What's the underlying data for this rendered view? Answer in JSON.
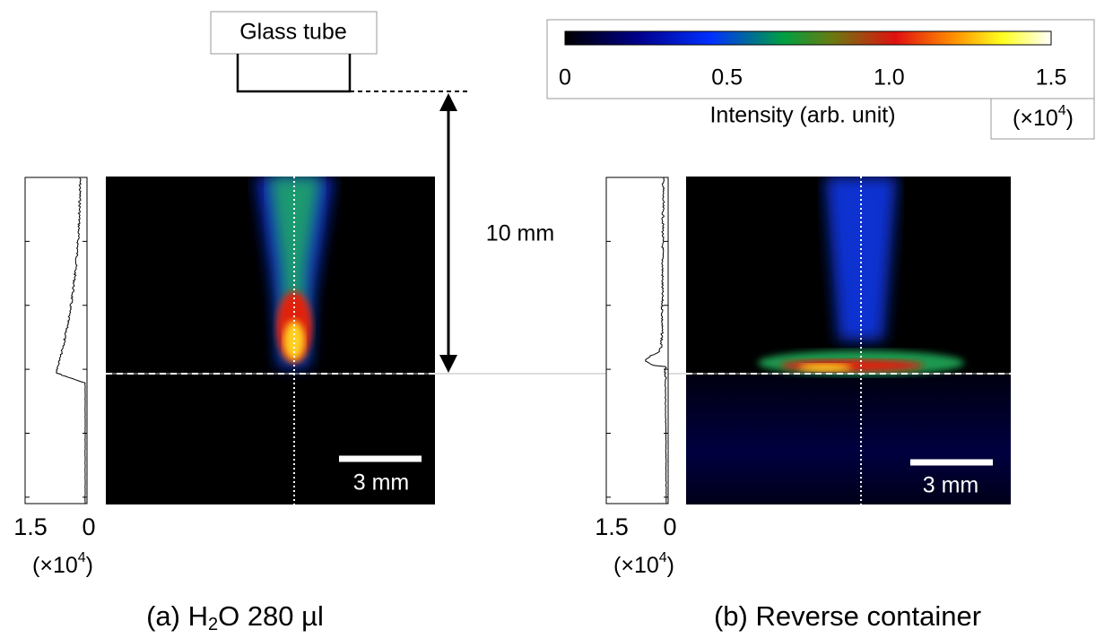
{
  "apparatus": {
    "label": "Glass tube",
    "distance": "10 mm"
  },
  "colorbar": {
    "ticks": [
      "0",
      "0.5",
      "1.0",
      "1.5"
    ],
    "title": "Intensity (arb. unit)",
    "multiplier": {
      "base": "(×10",
      "exp": "4",
      "close": ")"
    }
  },
  "panels": [
    {
      "scale_bar": "3 mm",
      "profile_ticks": [
        "1.5",
        "0"
      ],
      "multiplier": {
        "base": "(×10",
        "exp": "4",
        "close": ")"
      },
      "caption": {
        "pre": "(a) H",
        "sub": "2",
        "post": "O 280 µl"
      }
    },
    {
      "scale_bar": "3 mm",
      "profile_ticks": [
        "1.5",
        "0"
      ],
      "multiplier": {
        "base": "(×10",
        "exp": "4",
        "close": ")"
      },
      "caption": {
        "pre": "(b) Reverse container"
      }
    }
  ]
}
